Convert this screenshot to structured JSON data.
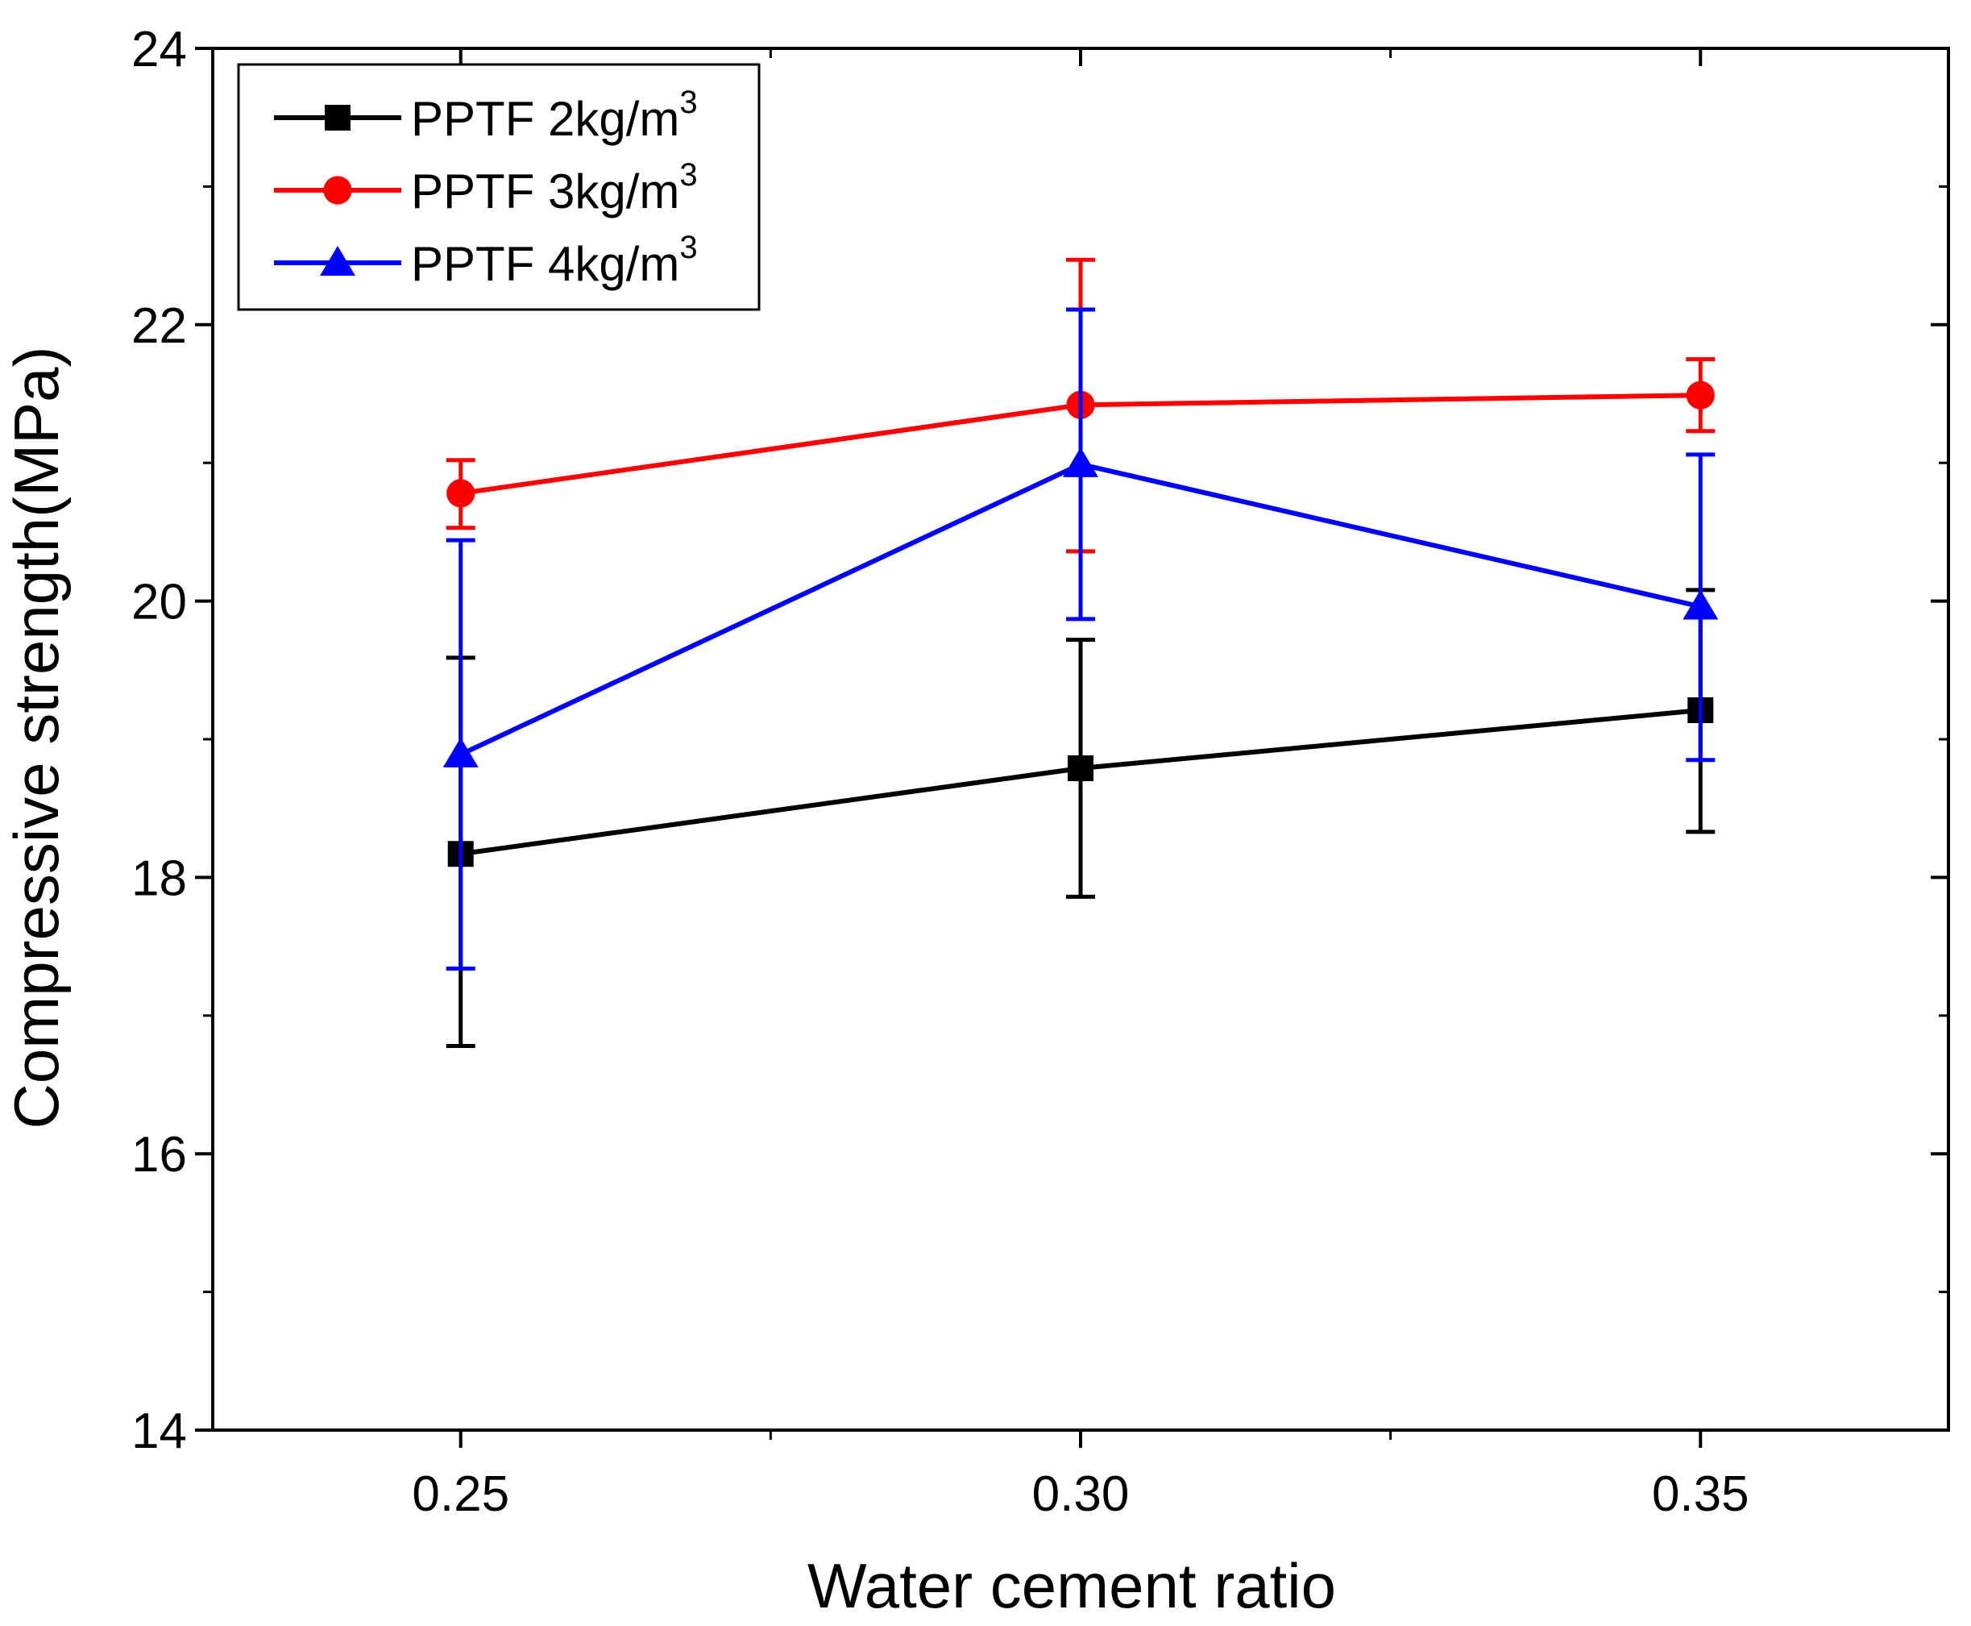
{
  "chart_data": {
    "type": "line",
    "title": "",
    "xlabel": "Water cement ratio",
    "ylabel": "Compressive strength(MPa)",
    "x": [
      0.25,
      0.3,
      0.35
    ],
    "x_tick_labels": [
      "0.25",
      "0.30",
      "0.35"
    ],
    "xlim": [
      0.23,
      0.37
    ],
    "ylim": [
      14,
      24
    ],
    "y_ticks": [
      14,
      16,
      18,
      20,
      22,
      24
    ],
    "y_tick_labels": [
      "14",
      "16",
      "18",
      "20",
      "22",
      "24"
    ],
    "y_minor_ticks": [
      15,
      17,
      19,
      21,
      23
    ],
    "x_minor_ticks": [
      0.275,
      0.325
    ],
    "grid": false,
    "legend_position": "top-left",
    "series": [
      {
        "name": "PPTF 2kg/m3",
        "label_main": "PPTF 2kg/m",
        "label_sup": "3",
        "color": "#000000",
        "marker": "square",
        "values": [
          18.17,
          18.79,
          19.21
        ],
        "error_low": [
          16.78,
          17.86,
          18.33
        ],
        "error_high": [
          19.59,
          19.72,
          20.08
        ]
      },
      {
        "name": "PPTF 3kg/m3",
        "label_main": "PPTF 3kg/m",
        "label_sup": "3",
        "color": "#ff0000",
        "marker": "circle",
        "values": [
          20.78,
          21.42,
          21.49
        ],
        "error_low": [
          20.53,
          20.36,
          21.23
        ],
        "error_high": [
          21.02,
          22.47,
          21.75
        ]
      },
      {
        "name": "PPTF 4kg/m3",
        "label_main": "PPTF 4kg/m",
        "label_sup": "3",
        "color": "#0000ff",
        "marker": "triangle",
        "values": [
          18.89,
          20.99,
          19.96
        ],
        "error_low": [
          17.34,
          19.87,
          18.85
        ],
        "error_high": [
          20.44,
          22.11,
          21.06
        ]
      }
    ]
  }
}
